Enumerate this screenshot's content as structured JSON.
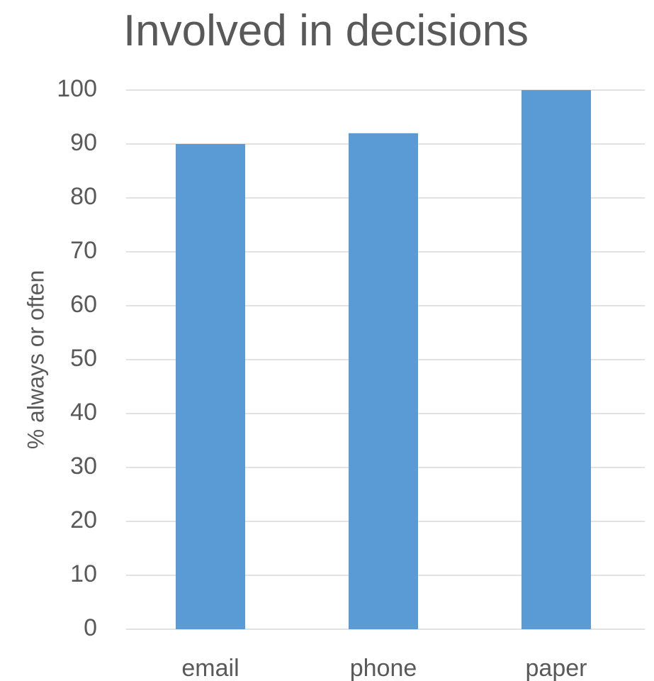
{
  "chart_data": {
    "type": "bar",
    "title": "Involved in decisions",
    "xlabel": "",
    "ylabel": "% always or often",
    "categories": [
      "email",
      "phone",
      "paper"
    ],
    "values": [
      90,
      92,
      100
    ],
    "ylim": [
      0,
      100
    ],
    "yticks": [
      0,
      10,
      20,
      30,
      40,
      50,
      60,
      70,
      80,
      90,
      100
    ],
    "ytick_labels": [
      "0",
      "10",
      "20",
      "30",
      "40",
      "50",
      "60",
      "70",
      "80",
      "90",
      "100"
    ],
    "grid": true,
    "legend": "none",
    "bar_color": "#5b9bd5"
  }
}
